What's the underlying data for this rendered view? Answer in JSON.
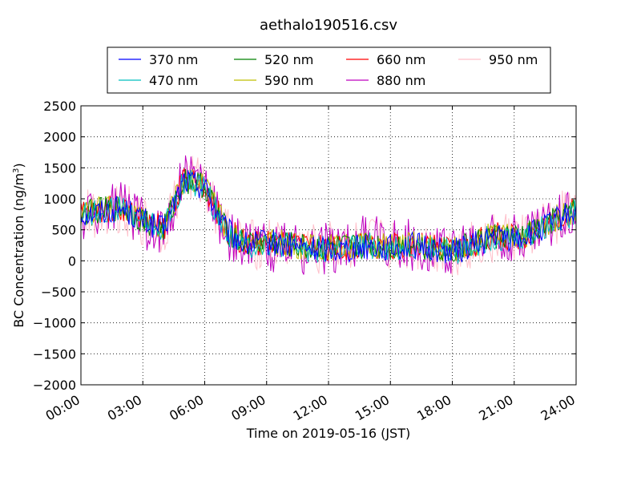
{
  "chart_data": {
    "type": "line",
    "title": "aethalo190516.csv",
    "xlabel": "Time on 2019-05-16 (JST)",
    "ylabel": "BC Concentration (ng/m³)",
    "ylabel_main": "BC Concentration (ng/m",
    "ylabel_sup": "3",
    "ylabel_close": ")",
    "xlim": [
      "00:00",
      "24:00"
    ],
    "ylim": [
      -2000,
      2500
    ],
    "x_ticks": [
      "00:00",
      "03:00",
      "06:00",
      "09:00",
      "12:00",
      "15:00",
      "18:00",
      "21:00",
      "24:00"
    ],
    "y_ticks": [
      2500,
      2000,
      1500,
      1000,
      500,
      0,
      -500,
      -1000,
      -1500,
      -2000
    ],
    "y_tick_labels": [
      "2500",
      "2000",
      "1500",
      "1000",
      "500",
      "0",
      "−500",
      "−1000",
      "−1500",
      "−2000"
    ],
    "grid": true,
    "legend_position": "top-center",
    "x_hours": [
      0,
      1,
      2,
      3,
      4,
      5,
      6,
      7,
      8,
      9,
      10,
      11,
      12,
      13,
      14,
      15,
      16,
      17,
      18,
      19,
      20,
      21,
      22,
      23,
      24
    ],
    "series": [
      {
        "name": "370 nm",
        "color": "#0000ff",
        "values": [
          750,
          800,
          850,
          650,
          500,
          1300,
          1200,
          500,
          250,
          300,
          250,
          200,
          200,
          200,
          250,
          200,
          250,
          200,
          150,
          250,
          400,
          350,
          450,
          650,
          800
        ]
      },
      {
        "name": "470 nm",
        "color": "#00bfbf",
        "values": [
          740,
          790,
          840,
          640,
          490,
          1290,
          1190,
          490,
          240,
          290,
          240,
          190,
          190,
          190,
          240,
          190,
          240,
          190,
          140,
          240,
          390,
          340,
          440,
          640,
          790
        ]
      },
      {
        "name": "520 nm",
        "color": "#008000",
        "values": [
          760,
          810,
          860,
          660,
          510,
          1310,
          1210,
          510,
          260,
          310,
          260,
          210,
          210,
          210,
          260,
          210,
          260,
          210,
          160,
          260,
          410,
          360,
          460,
          660,
          810
        ]
      },
      {
        "name": "590 nm",
        "color": "#bfbf00",
        "values": [
          780,
          830,
          880,
          680,
          530,
          1330,
          1230,
          530,
          270,
          320,
          270,
          220,
          220,
          220,
          270,
          220,
          270,
          220,
          170,
          270,
          420,
          370,
          470,
          680,
          830
        ]
      },
      {
        "name": "660 nm",
        "color": "#ff0000",
        "values": [
          770,
          820,
          870,
          670,
          520,
          1320,
          1220,
          520,
          265,
          315,
          265,
          215,
          215,
          215,
          265,
          215,
          265,
          215,
          165,
          265,
          415,
          365,
          465,
          670,
          820
        ]
      },
      {
        "name": "880 nm",
        "color": "#bf00bf",
        "values": [
          700,
          850,
          900,
          600,
          450,
          1400,
          1250,
          450,
          200,
          250,
          200,
          150,
          200,
          250,
          350,
          300,
          250,
          200,
          150,
          250,
          400,
          350,
          450,
          700,
          800
        ]
      },
      {
        "name": "950 nm",
        "color": "#ffc0cb",
        "values": [
          720,
          820,
          880,
          620,
          480,
          1350,
          1230,
          480,
          230,
          280,
          230,
          190,
          230,
          230,
          290,
          250,
          230,
          190,
          150,
          230,
          390,
          340,
          440,
          680,
          790
        ]
      }
    ]
  }
}
